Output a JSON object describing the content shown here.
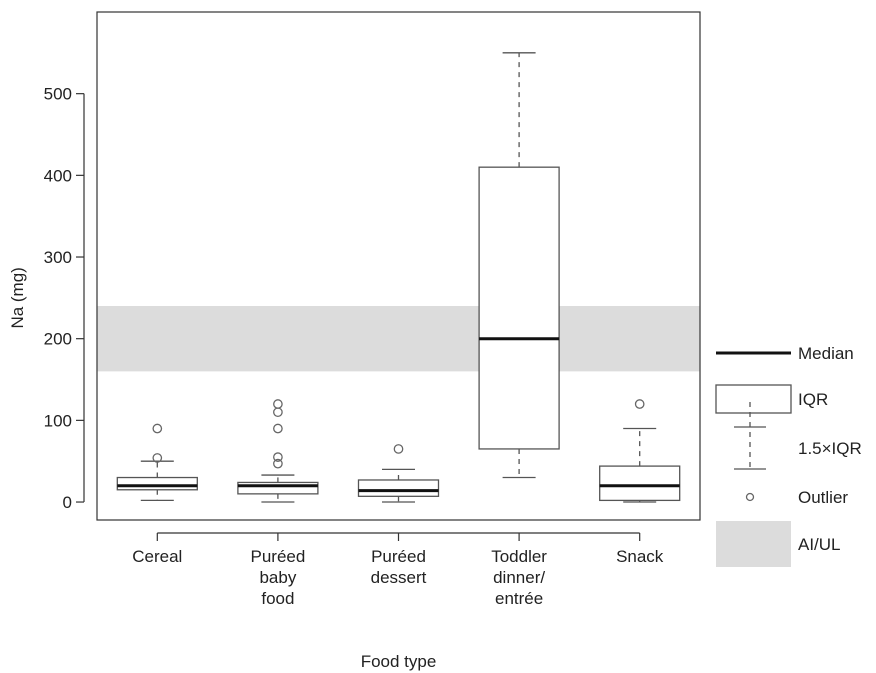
{
  "chart_data": {
    "type": "box",
    "xlabel": "Food type",
    "ylabel": "Na (mg)",
    "ylim": [
      -22,
      600
    ],
    "yticks": [
      0,
      100,
      200,
      300,
      400,
      500
    ],
    "grid": false,
    "legend_position": "right",
    "band": {
      "name": "AI/UL",
      "low": 160,
      "high": 240,
      "color": "#dcdcdc"
    },
    "categories": [
      {
        "lines": [
          "Cereal"
        ]
      },
      {
        "lines": [
          "Puréed",
          "baby",
          "food"
        ]
      },
      {
        "lines": [
          "Puréed",
          "dessert"
        ]
      },
      {
        "lines": [
          "Toddler",
          "dinner/",
          "entrée"
        ]
      },
      {
        "lines": [
          "Snack"
        ]
      }
    ],
    "boxes": [
      {
        "whisker_low": 2,
        "q1": 15,
        "median": 20,
        "q3": 30,
        "whisker_high": 50,
        "outliers": [
          54,
          90
        ]
      },
      {
        "whisker_low": 0,
        "q1": 10,
        "median": 20,
        "q3": 24,
        "whisker_high": 33,
        "outliers": [
          47,
          55,
          90,
          110,
          120
        ]
      },
      {
        "whisker_low": 0,
        "q1": 7,
        "median": 14,
        "q3": 27,
        "whisker_high": 40,
        "outliers": [
          65
        ]
      },
      {
        "whisker_low": 30,
        "q1": 65,
        "median": 200,
        "q3": 410,
        "whisker_high": 550,
        "outliers": []
      },
      {
        "whisker_low": 0,
        "q1": 2,
        "median": 20,
        "q3": 44,
        "whisker_high": 90,
        "outliers": [
          120
        ]
      }
    ],
    "legend": [
      {
        "key": "median",
        "label": "Median"
      },
      {
        "key": "iqr",
        "label": "IQR"
      },
      {
        "key": "whisker",
        "label": "1.5×IQR"
      },
      {
        "key": "outlier",
        "label": "Outlier"
      },
      {
        "key": "band",
        "label": "AI/UL"
      }
    ]
  }
}
